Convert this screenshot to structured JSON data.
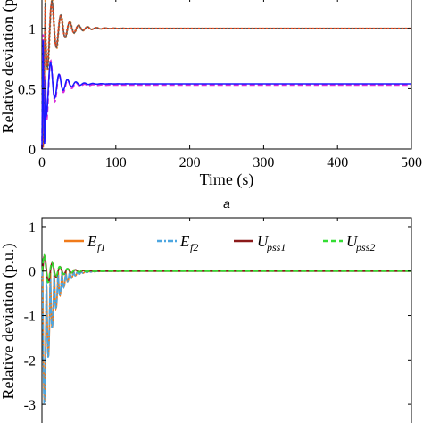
{
  "chart_data": [
    {
      "type": "line",
      "caption": "a",
      "xlabel": "Time (s)",
      "ylabel": "Relative deviation (p.u.)",
      "xlim": [
        0,
        500
      ],
      "ylim": [
        0,
        1.25
      ],
      "xticks": [
        "0",
        "100",
        "200",
        "300",
        "400",
        "500"
      ],
      "yticks": [
        "0",
        "0.5",
        "1"
      ],
      "series": [
        {
          "color": "#e8862a",
          "style": "dotted",
          "group": "upper",
          "steady": 1.0,
          "peak": 1.5,
          "decay": 0.12,
          "freq": 0.95
        },
        {
          "color": "#555555",
          "style": "solid",
          "group": "upper",
          "steady": 1.0,
          "peak": 1.45,
          "decay": 0.13,
          "freq": 0.95
        },
        {
          "color": "#e8481e",
          "style": "dotted",
          "group": "upper",
          "steady": 1.0,
          "peak": 1.4,
          "decay": 0.11,
          "freq": 0.95
        },
        {
          "color": "#d92cd9",
          "style": "dashed",
          "group": "lower",
          "steady": 0.53,
          "peak": 0.95,
          "decay": 0.14,
          "freq": 0.95
        },
        {
          "color": "#1a1aff",
          "style": "solid",
          "group": "lower",
          "steady": 0.54,
          "peak": 0.9,
          "decay": 0.13,
          "freq": 0.95
        }
      ]
    },
    {
      "type": "line",
      "ylabel": "Relative deviation (p.u.)",
      "xlim": [
        0,
        500
      ],
      "ylim": [
        -3.5,
        1.2
      ],
      "yticks": [
        "1",
        "0",
        "-1",
        "-2",
        "-3"
      ],
      "series": [
        {
          "name_main": "E",
          "name_sub": "f1",
          "color": "#f07a1a",
          "style": "solid"
        },
        {
          "name_main": "E",
          "name_sub": "f2",
          "color": "#4da6e0",
          "style": "dashdot"
        },
        {
          "name_main": "U",
          "name_sub": "pss1",
          "color": "#8b1a1a",
          "style": "solid"
        },
        {
          "name_main": "U",
          "name_sub": "pss2",
          "color": "#33dd33",
          "style": "dashed"
        }
      ]
    }
  ]
}
